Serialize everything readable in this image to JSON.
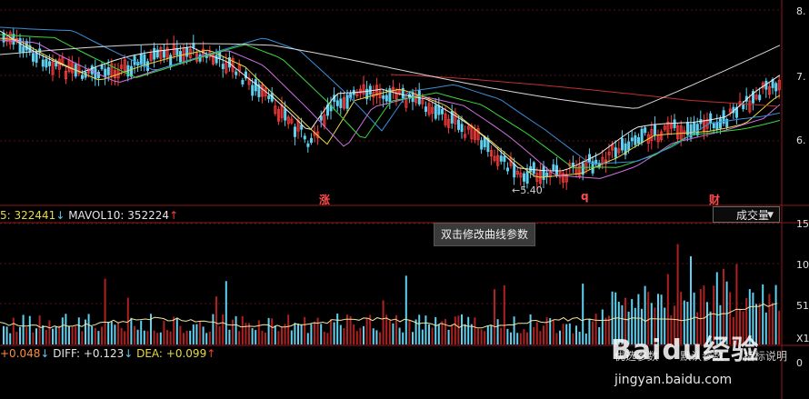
{
  "volume_indicator": {
    "prefix": "5: ",
    "val1": "322441",
    "arrow1": "↓",
    "mavol10_label": " MAVOL10: ",
    "val2": "352224",
    "arrow2": "↑"
  },
  "macd_indicator": {
    "prefix": "+0.048",
    "arrow1": "↓",
    "diff_label": " DIFF: ",
    "diff": "+0.123",
    "arrow2": "↓",
    "dea_label": " DEA: ",
    "dea": "+0.099",
    "arrow3": "↑"
  },
  "indicator_dropdown": {
    "value": "成交量",
    "arrow": "▼"
  },
  "tooltip": {
    "text": "双击修改曲线参数"
  },
  "event_markers": [
    {
      "label": "涨"
    },
    {
      "label": "q"
    },
    {
      "label": "财"
    }
  ],
  "price_marker": {
    "text": "5.40"
  },
  "price_axis_ticks": [
    "8.",
    "7.",
    "6."
  ],
  "volume_axis_ticks": [
    "15",
    "10",
    "51"
  ],
  "macd_axis_ticks": [
    "X1",
    "0"
  ],
  "bottom_tabs": [
    "优选参数",
    "默认参数",
    "指标说明"
  ],
  "watermark": {
    "main": "Baidu经验",
    "url": "jingyan.baidu.com"
  },
  "colors": {
    "up": "#ff3b3b",
    "down": "#5fd0ef",
    "grid": "#5a1010",
    "ma_white": "#f0f0f0",
    "ma_yellow": "#e8d84a",
    "ma_purple": "#d070e0",
    "ma_green": "#3ad83a",
    "ma_blue": "#3a8fd8",
    "ma_red": "#c03030"
  }
}
